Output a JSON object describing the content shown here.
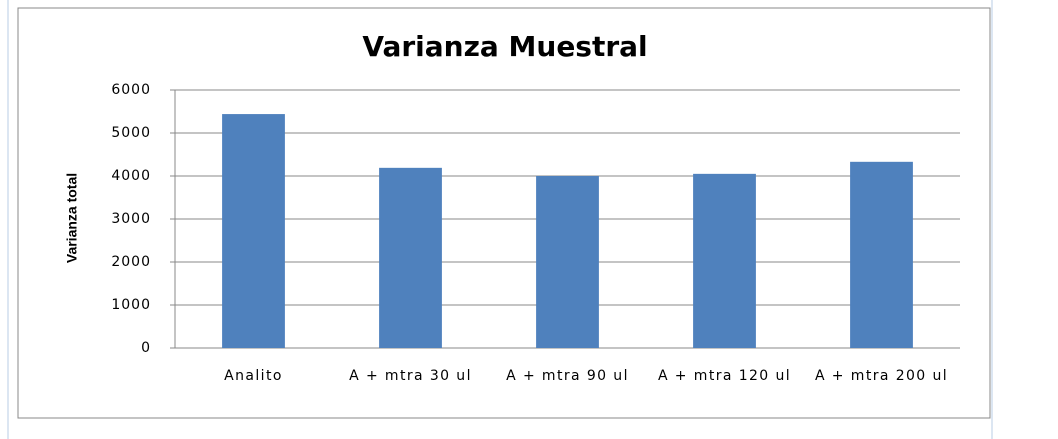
{
  "chart_data": {
    "type": "bar",
    "title": "Varianza Muestral",
    "y_label": "Varianza total",
    "categories": [
      "Analito",
      "A + mtra 30 ul",
      "A + mtra 90 ul",
      "A + mtra 120 ul",
      "A + mtra 200 ul"
    ],
    "values": [
      5440,
      4190,
      4000,
      4050,
      4330
    ],
    "color": "#4f81bd",
    "ylim": [
      0,
      6000
    ],
    "yticks": [
      0,
      1000,
      2000,
      3000,
      4000,
      5000,
      6000
    ],
    "grid": true
  }
}
